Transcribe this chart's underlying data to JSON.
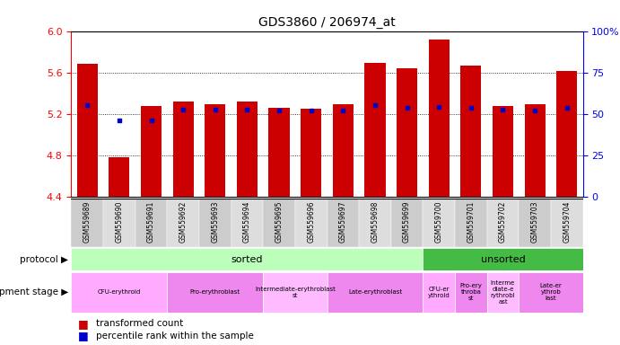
{
  "title": "GDS3860 / 206974_at",
  "samples": [
    "GSM559689",
    "GSM559690",
    "GSM559691",
    "GSM559692",
    "GSM559693",
    "GSM559694",
    "GSM559695",
    "GSM559696",
    "GSM559697",
    "GSM559698",
    "GSM559699",
    "GSM559700",
    "GSM559701",
    "GSM559702",
    "GSM559703",
    "GSM559704"
  ],
  "transformed_count": [
    5.68,
    4.78,
    5.28,
    5.32,
    5.29,
    5.32,
    5.26,
    5.25,
    5.29,
    5.69,
    5.64,
    5.92,
    5.67,
    5.28,
    5.29,
    5.61
  ],
  "percentile_rank_val": [
    5.285,
    5.135,
    5.135,
    5.24,
    5.24,
    5.24,
    5.23,
    5.23,
    5.23,
    5.285,
    5.26,
    5.27,
    5.26,
    5.24,
    5.235,
    5.26
  ],
  "y_min": 4.4,
  "y_max": 6.0,
  "bar_color": "#cc0000",
  "blue_color": "#0000cc",
  "right_y_ticks": [
    0,
    25,
    50,
    75,
    100
  ],
  "right_y_labels": [
    "0",
    "25",
    "50",
    "75",
    "100%"
  ],
  "left_y_ticks": [
    4.4,
    4.8,
    5.2,
    5.6,
    6.0
  ],
  "dotted_lines": [
    4.8,
    5.2,
    5.6
  ],
  "protocol": [
    {
      "label": "sorted",
      "start": 0,
      "end": 11,
      "color": "#bbffbb"
    },
    {
      "label": "unsorted",
      "start": 11,
      "end": 16,
      "color": "#44bb44"
    }
  ],
  "dev_stage": [
    {
      "label": "CFU-erythroid",
      "start": 0,
      "end": 3,
      "color": "#ffaaff"
    },
    {
      "label": "Pro-erythroblast",
      "start": 3,
      "end": 6,
      "color": "#ee88ee"
    },
    {
      "label": "Intermediate-erythroblast\nst",
      "start": 6,
      "end": 8,
      "color": "#ffbbff"
    },
    {
      "label": "Late-erythroblast",
      "start": 8,
      "end": 11,
      "color": "#ee88ee"
    },
    {
      "label": "CFU-er\nythroid",
      "start": 11,
      "end": 12,
      "color": "#ffaaff"
    },
    {
      "label": "Pro-ery\nthroba\nst",
      "start": 12,
      "end": 13,
      "color": "#ee88ee"
    },
    {
      "label": "Interme\ndiate-e\nrythrobl\nast",
      "start": 13,
      "end": 14,
      "color": "#ffbbff"
    },
    {
      "label": "Late-er\nythrob\nlast",
      "start": 14,
      "end": 16,
      "color": "#ee88ee"
    }
  ],
  "xtick_bg": "#dddddd",
  "legend_items": [
    {
      "label": "transformed count",
      "color": "#cc0000"
    },
    {
      "label": "percentile rank within the sample",
      "color": "#0000cc"
    }
  ]
}
